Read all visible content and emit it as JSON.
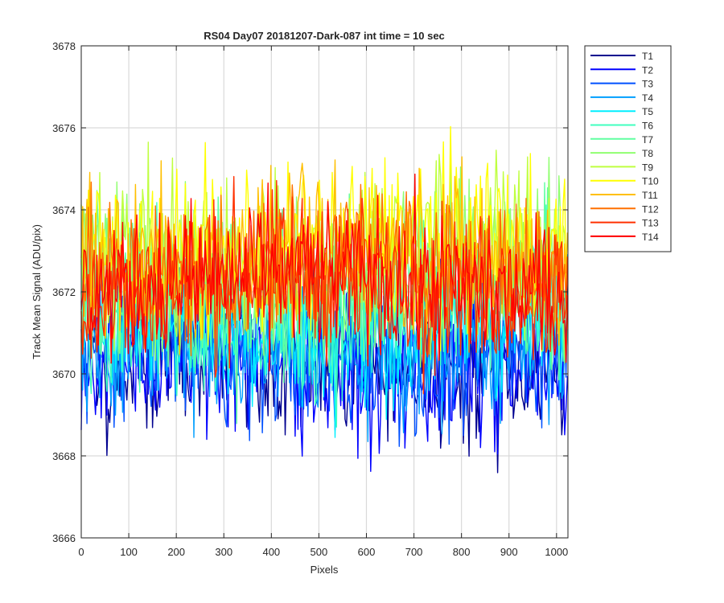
{
  "chart_data": {
    "type": "line",
    "title": "RS04 Day07 20181207-Dark-087 int time = 10 sec",
    "xlabel": "Pixels",
    "ylabel": "Track Mean Signal (ADU/pix)",
    "xlim": [
      0,
      1024
    ],
    "ylim": [
      3666,
      3678
    ],
    "xticks": [
      0,
      100,
      200,
      300,
      400,
      500,
      600,
      700,
      800,
      900,
      1000
    ],
    "yticks": [
      3666,
      3668,
      3670,
      3672,
      3674,
      3676,
      3678
    ],
    "grid": true,
    "legend_position": "outside-top-right",
    "series": [
      {
        "name": "T1",
        "color": "#00008f",
        "mean": 3670.3,
        "spread": 0.9
      },
      {
        "name": "T2",
        "color": "#0000ff",
        "mean": 3670.2,
        "spread": 0.9
      },
      {
        "name": "T3",
        "color": "#0050ff",
        "mean": 3670.5,
        "spread": 0.9
      },
      {
        "name": "T4",
        "color": "#009fff",
        "mean": 3670.8,
        "spread": 0.9
      },
      {
        "name": "T5",
        "color": "#00efff",
        "mean": 3671.2,
        "spread": 0.9
      },
      {
        "name": "T6",
        "color": "#40ffbf",
        "mean": 3671.5,
        "spread": 0.9
      },
      {
        "name": "T7",
        "color": "#60ffa0",
        "mean": 3672.2,
        "spread": 1.0
      },
      {
        "name": "T8",
        "color": "#90ff70",
        "mean": 3672.6,
        "spread": 1.0
      },
      {
        "name": "T9",
        "color": "#bfff40",
        "mean": 3673.0,
        "spread": 1.0
      },
      {
        "name": "T10",
        "color": "#ffff00",
        "mean": 3673.1,
        "spread": 1.0
      },
      {
        "name": "T11",
        "color": "#ffbf00",
        "mean": 3672.9,
        "spread": 1.0
      },
      {
        "name": "T12",
        "color": "#ff7000",
        "mean": 3672.5,
        "spread": 0.9
      },
      {
        "name": "T13",
        "color": "#ff3000",
        "mean": 3672.2,
        "spread": 0.9
      },
      {
        "name": "T14",
        "color": "#ff0000",
        "mean": 3672.2,
        "spread": 0.9
      }
    ]
  }
}
